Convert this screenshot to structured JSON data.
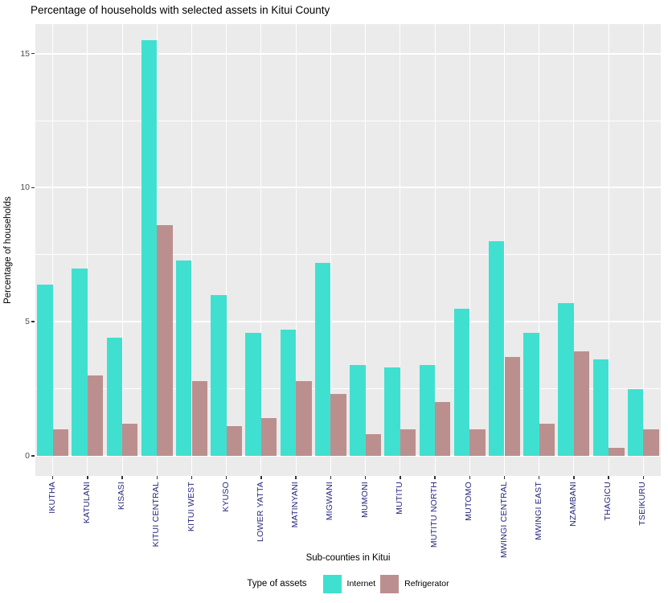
{
  "chart_data": {
    "type": "bar",
    "title": "Percentage of households with selected assets in Kitui County",
    "xlabel": "Sub-counties in Kitui",
    "ylabel": "Percentage of households",
    "legend_title": "Type of assets",
    "legend_position": "bottom",
    "categories": [
      "IKUTHA",
      "KATULANI",
      "KISASI",
      "KITUI CENTRAL",
      "KITUI WEST",
      "KYUSO",
      "LOWER YATTA",
      "MATINYANI",
      "MIGWANI",
      "MUMONI",
      "MUTITU",
      "MUTITU NORTH",
      "MUTOMO",
      "MWINGI CENTRAL",
      "MWINGI EAST",
      "NZAMBANI",
      "THAGICU",
      "TSEIKURU"
    ],
    "series": [
      {
        "name": "Internet",
        "color": "#40E0D0",
        "values": [
          6.4,
          7.0,
          4.4,
          15.5,
          7.3,
          6.0,
          4.6,
          4.7,
          7.2,
          3.4,
          3.3,
          3.4,
          5.5,
          8.0,
          4.6,
          5.7,
          3.6,
          2.5
        ]
      },
      {
        "name": "Refrigerator",
        "color": "#BC8F8F",
        "values": [
          1.0,
          3.0,
          1.2,
          8.6,
          2.8,
          1.1,
          1.4,
          2.8,
          2.3,
          0.8,
          1.0,
          2.0,
          1.0,
          3.7,
          1.2,
          3.9,
          0.3,
          1.0
        ]
      }
    ],
    "yticks": [
      0,
      5,
      10,
      15
    ],
    "yticks_minor": [
      2.5,
      7.5,
      12.5
    ],
    "ylim": [
      -0.75,
      16.1
    ],
    "grid": true,
    "panel_bg": "#EBEBEB",
    "grid_color": "#FFFFFF",
    "x_label_color": "#28287E",
    "y_tick_color": "#4D4D4D"
  }
}
